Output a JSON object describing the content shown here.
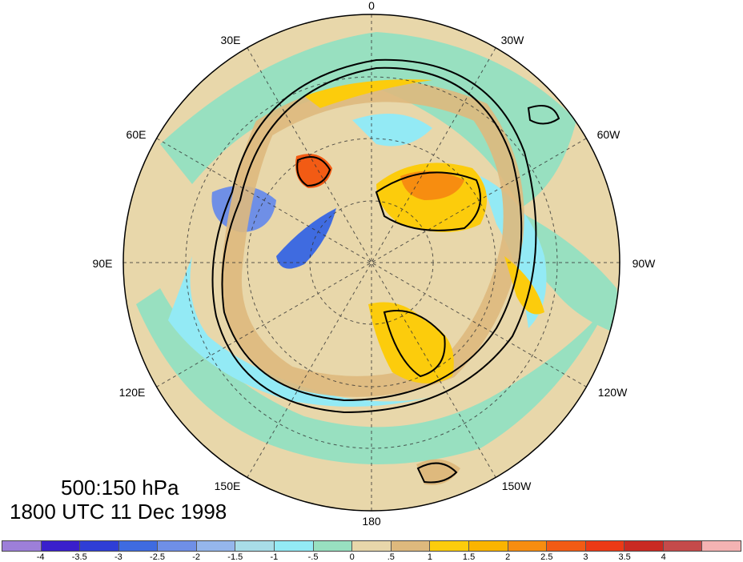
{
  "title": {
    "line1": "500:150 hPa",
    "line2": "1800 UTC 11 Dec 1998"
  },
  "longitude_labels": [
    "0",
    "30W",
    "60W",
    "90W",
    "120W",
    "150W",
    "180",
    "150E",
    "120E",
    "90E",
    "60E",
    "30E"
  ],
  "colorbar": {
    "colors": [
      "#9d7fd9",
      "#3a1fcc",
      "#2f3ed6",
      "#3f6be0",
      "#6f8fe6",
      "#95b6ec",
      "#a8dde8",
      "#93eaf5",
      "#98e0c0",
      "#e8d7aa",
      "#deb97d",
      "#fccc0c",
      "#fbb400",
      "#f78d10",
      "#f25b14",
      "#ec3a16",
      "#c92a22",
      "#c54a4a",
      "#f4b3b3"
    ],
    "ticks": [
      "-4",
      "-3.5",
      "-3",
      "-2.5",
      "-2",
      "-1.5",
      "-1",
      "-.5",
      "0",
      ".5",
      "1",
      "1.5",
      "2",
      "2.5",
      "3",
      "3.5",
      "4"
    ]
  },
  "field_colors": {
    "ocean_base": "#98e0c0",
    "tan": "#deb97d",
    "light_tan": "#e8d7aa",
    "cyan": "#93eaf5",
    "blue": "#6f8fe6",
    "dark_blue": "#3f6be0",
    "yellow": "#fccc0c",
    "orange": "#fbb400",
    "red_orange": "#f25b14"
  }
}
